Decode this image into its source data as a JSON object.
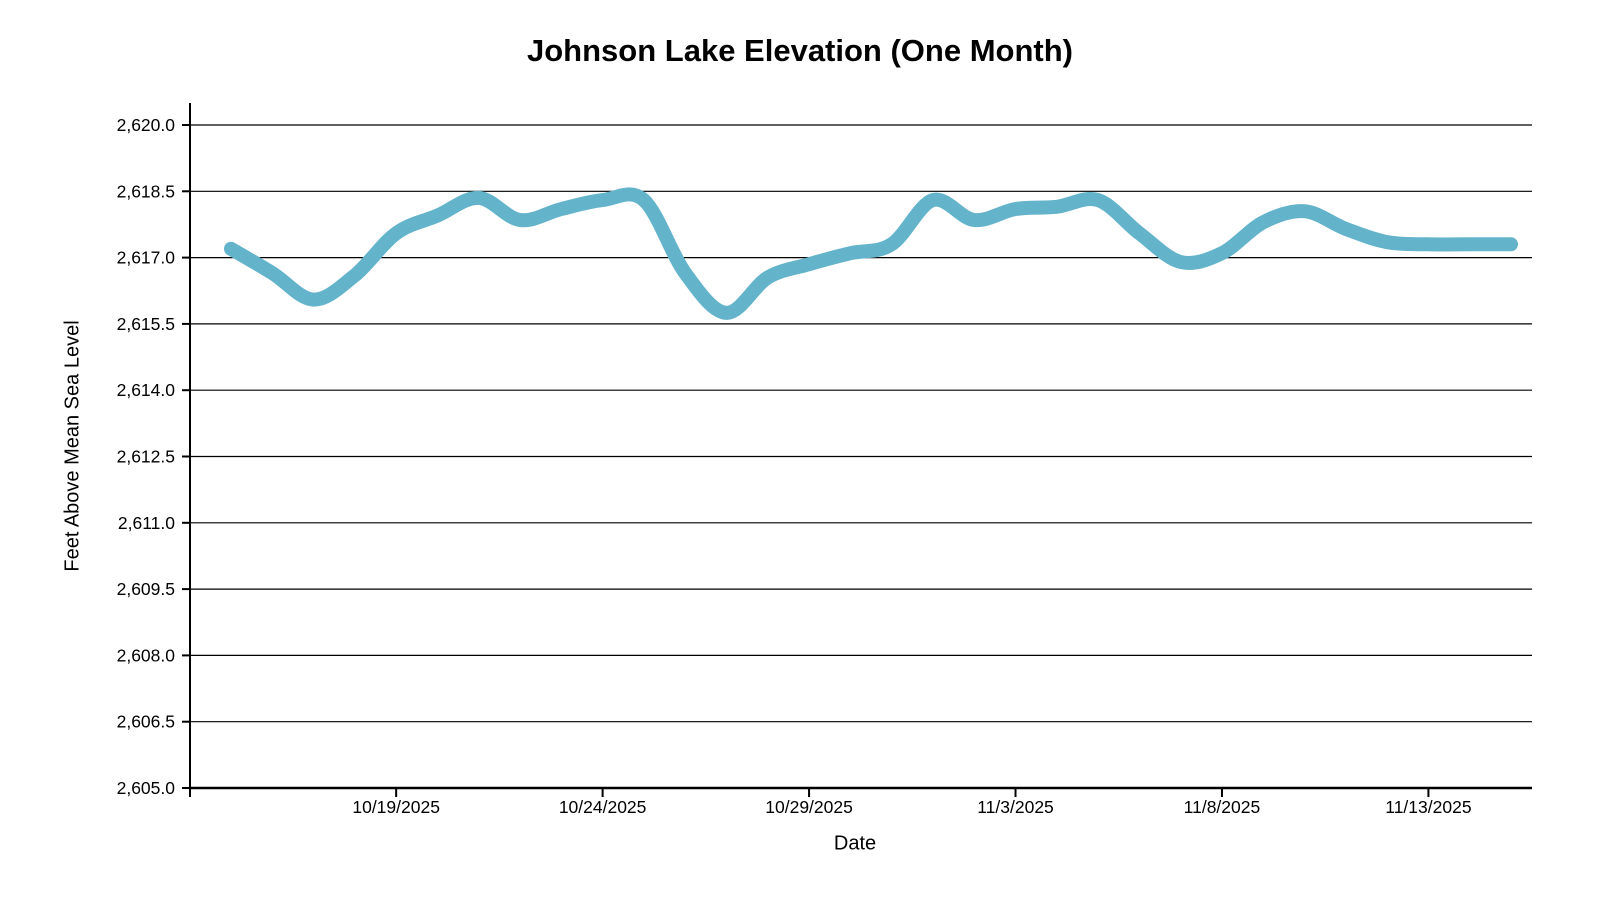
{
  "page": {
    "background_color": "#ffffff"
  },
  "chart_data": {
    "type": "line",
    "title": "Johnson Lake Elevation (One Month)",
    "xlabel": "Date",
    "ylabel": "Feet Above Mean Sea Level",
    "x": [
      "10/15/2025",
      "10/16/2025",
      "10/17/2025",
      "10/18/2025",
      "10/19/2025",
      "10/20/2025",
      "10/21/2025",
      "10/22/2025",
      "10/23/2025",
      "10/24/2025",
      "10/25/2025",
      "10/26/2025",
      "10/27/2025",
      "10/28/2025",
      "10/29/2025",
      "10/30/2025",
      "10/31/2025",
      "11/1/2025",
      "11/2/2025",
      "11/3/2025",
      "11/4/2025",
      "11/5/2025",
      "11/6/2025",
      "11/7/2025",
      "11/8/2025",
      "11/9/2025",
      "11/10/2025",
      "11/11/2025",
      "11/12/2025",
      "11/13/2025",
      "11/14/2025",
      "11/15/2025"
    ],
    "values": [
      2617.2,
      2616.65,
      2616.05,
      2616.6,
      2617.55,
      2617.95,
      2618.35,
      2617.85,
      2618.1,
      2618.3,
      2618.3,
      2616.65,
      2615.75,
      2616.55,
      2616.85,
      2617.1,
      2617.3,
      2618.3,
      2617.85,
      2618.1,
      2618.15,
      2618.3,
      2617.55,
      2616.9,
      2617.1,
      2617.8,
      2618.05,
      2617.65,
      2617.35,
      2617.3,
      2617.3,
      2617.3
    ],
    "ylim": [
      2605.0,
      2620.0
    ],
    "y_tick_step": 1.5,
    "y_tick_labels": [
      "2,620.0",
      "2,618.5",
      "2,617.0",
      "2,615.5",
      "2,614.0",
      "2,612.5",
      "2,611.0",
      "2,609.5",
      "2,608.0",
      "2,606.5",
      "2,605.0"
    ],
    "y_tick_values": [
      2620.0,
      2618.5,
      2617.0,
      2615.5,
      2614.0,
      2612.5,
      2611.0,
      2609.5,
      2608.0,
      2606.5,
      2605.0
    ],
    "x_tick_labels": [
      "10/19/2025",
      "10/24/2025",
      "10/29/2025",
      "11/3/2025",
      "11/8/2025",
      "11/13/2025"
    ],
    "x_tick_indices": [
      4,
      9,
      14,
      19,
      24,
      29
    ],
    "grid": "horizontal-only",
    "legend": "none",
    "line_color": "#63b3cb",
    "line_width": 14,
    "axis_color": "#000000",
    "gridline_color": "#000000"
  }
}
